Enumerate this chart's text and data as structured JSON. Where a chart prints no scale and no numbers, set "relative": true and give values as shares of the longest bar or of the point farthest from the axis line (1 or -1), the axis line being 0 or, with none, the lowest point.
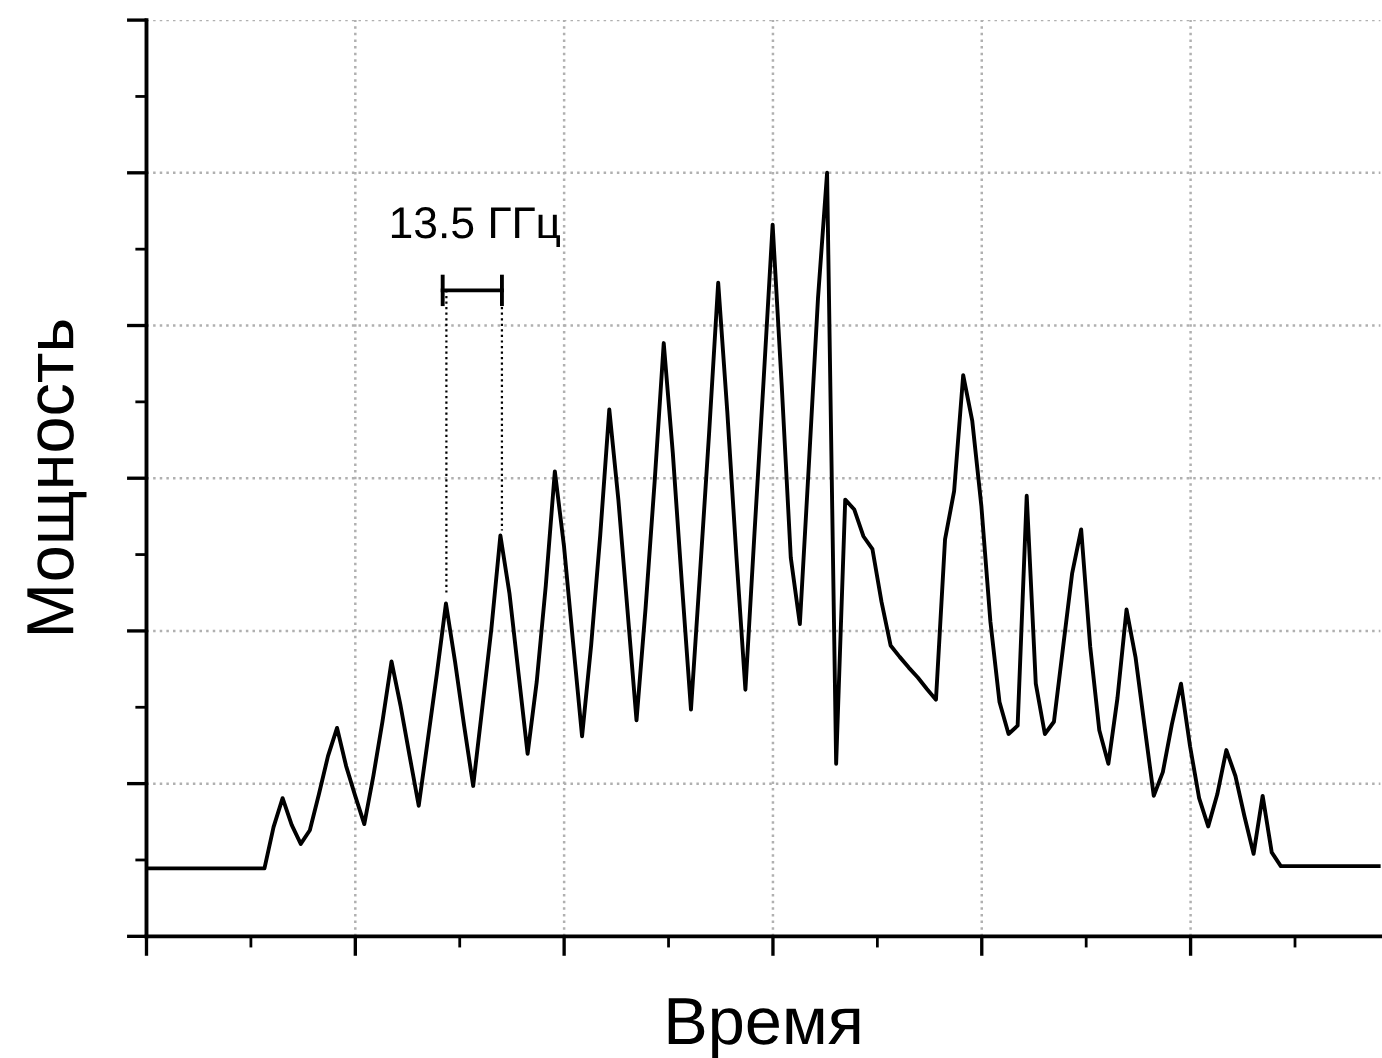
{
  "chart_data": {
    "type": "line",
    "relative": true,
    "xlabel": "Время",
    "ylabel": "Мощность",
    "grid": true,
    "tick_labels": false,
    "marker": "none",
    "line_style": "solid",
    "annotations": [
      "13.5 ГГц"
    ],
    "categories": [
      null,
      null,
      null,
      null,
      null,
      null,
      null,
      null,
      null,
      null,
      null,
      null,
      null,
      null,
      null,
      null,
      null,
      null,
      null,
      null,
      null,
      null,
      null,
      null,
      null,
      null,
      null,
      null,
      null,
      null,
      null,
      null,
      null,
      null,
      null,
      null,
      null,
      null,
      null,
      null,
      null,
      null,
      null,
      null,
      null,
      null,
      null,
      null,
      null,
      null,
      null,
      null,
      null,
      null,
      null,
      null,
      null,
      null,
      null,
      null,
      null,
      null,
      null,
      null,
      null,
      null,
      null,
      null,
      null,
      null,
      null,
      null,
      null,
      null,
      null,
      null,
      null,
      null,
      null,
      null,
      null,
      null,
      null,
      null,
      null,
      null,
      null,
      null,
      null,
      null,
      null,
      null,
      null,
      null,
      null,
      null,
      null,
      null,
      null,
      null,
      null,
      null,
      null,
      null,
      null,
      null,
      null,
      null,
      null,
      null,
      null,
      null,
      null,
      null,
      null,
      null,
      null,
      null,
      null,
      null,
      null,
      null,
      null,
      null,
      null,
      null,
      null,
      null,
      null,
      null,
      null,
      null,
      null,
      null,
      null,
      null,
      null
    ],
    "series": [
      {
        "color": "#000000",
        "values": [
          0.089,
          0.089,
          0.089,
          0.089,
          0.089,
          0.089,
          0.089,
          0.089,
          0.089,
          0.089,
          0.089,
          0.089,
          0.089,
          0.089,
          0.143,
          0.181,
          0.146,
          0.121,
          0.139,
          0.186,
          0.236,
          0.273,
          0.223,
          0.184,
          0.147,
          0.21,
          0.281,
          0.36,
          0.302,
          0.236,
          0.171,
          0.257,
          0.344,
          0.436,
          0.36,
          0.276,
          0.197,
          0.299,
          0.402,
          0.525,
          0.449,
          0.344,
          0.239,
          0.333,
          0.459,
          0.609,
          0.512,
          0.386,
          0.262,
          0.381,
          0.525,
          0.69,
          0.572,
          0.428,
          0.283,
          0.43,
          0.596,
          0.777,
          0.633,
          0.462,
          0.297,
          0.476,
          0.659,
          0.856,
          0.688,
          0.499,
          0.323,
          0.528,
          0.727,
          0.932,
          0.722,
          0.496,
          0.409,
          0.619,
          0.836,
          1.0,
          0.226,
          0.572,
          0.559,
          0.524,
          0.507,
          0.438,
          0.381,
          0.366,
          0.352,
          0.339,
          0.324,
          0.31,
          0.52,
          0.583,
          0.735,
          0.675,
          0.564,
          0.412,
          0.307,
          0.265,
          0.276,
          0.577,
          0.331,
          0.265,
          0.281,
          0.378,
          0.475,
          0.533,
          0.379,
          0.27,
          0.226,
          0.312,
          0.428,
          0.365,
          0.274,
          0.184,
          0.215,
          0.278,
          0.331,
          0.249,
          0.181,
          0.144,
          0.186,
          0.244,
          0.21,
          0.157,
          0.108,
          0.184,
          0.11,
          0.092,
          0.092,
          0.092,
          0.092,
          0.092,
          0.092,
          0.092,
          0.092,
          0.092,
          0.092,
          0.092,
          0.092
        ]
      }
    ]
  }
}
